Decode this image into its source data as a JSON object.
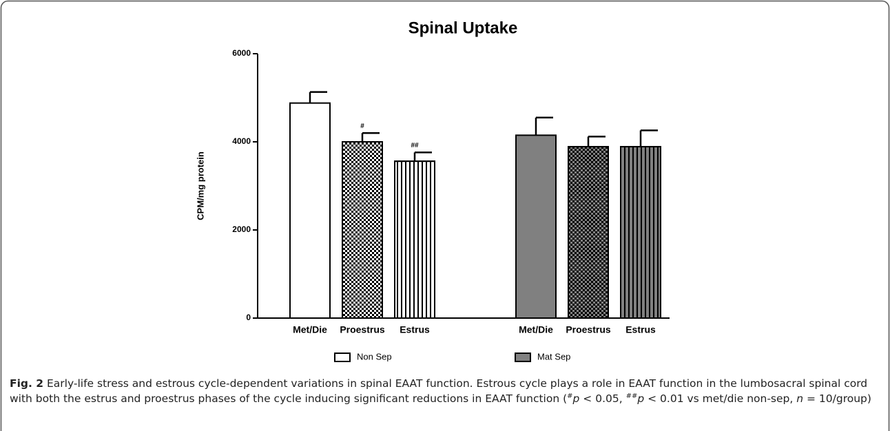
{
  "chart_data": {
    "type": "bar",
    "title": "Spinal Uptake",
    "y_label": "CPM/mg protein",
    "categories": [
      "Met/Die",
      "Proestrus",
      "Estrus"
    ],
    "patterns": [
      "solid",
      "checker",
      "stripes"
    ],
    "series": [
      {
        "name": "Non Sep",
        "color": "#ffffff",
        "values": [
          4880,
          4000,
          3560
        ],
        "errors": [
          250,
          200,
          200
        ]
      },
      {
        "name": "Mat Sep",
        "color": "#808080",
        "values": [
          4150,
          3890,
          3890
        ],
        "errors": [
          400,
          230,
          370
        ]
      }
    ],
    "annotations": [
      {
        "text": "#",
        "series": 0,
        "category": 1
      },
      {
        "text": "##",
        "series": 0,
        "category": 2
      }
    ],
    "ylim": [
      0,
      6000
    ],
    "yticks": [
      0,
      2000,
      4000,
      6000
    ],
    "legend": "bottom"
  },
  "caption": {
    "label": "Fig. 2",
    "segments": [
      "Early-life stress and estrous cycle-dependent variations in spinal EAAT function. Estrous cycle plays a role in EAAT function in the lumbosacral spinal cord with both the estrus and proestrus phases of the cycle inducing significant reductions in EAAT function (",
      "#",
      "p",
      " < 0.05, ",
      "##",
      "p",
      " < 0.01 vs met/die non-sep, ",
      "n",
      " = 10/group)"
    ]
  }
}
